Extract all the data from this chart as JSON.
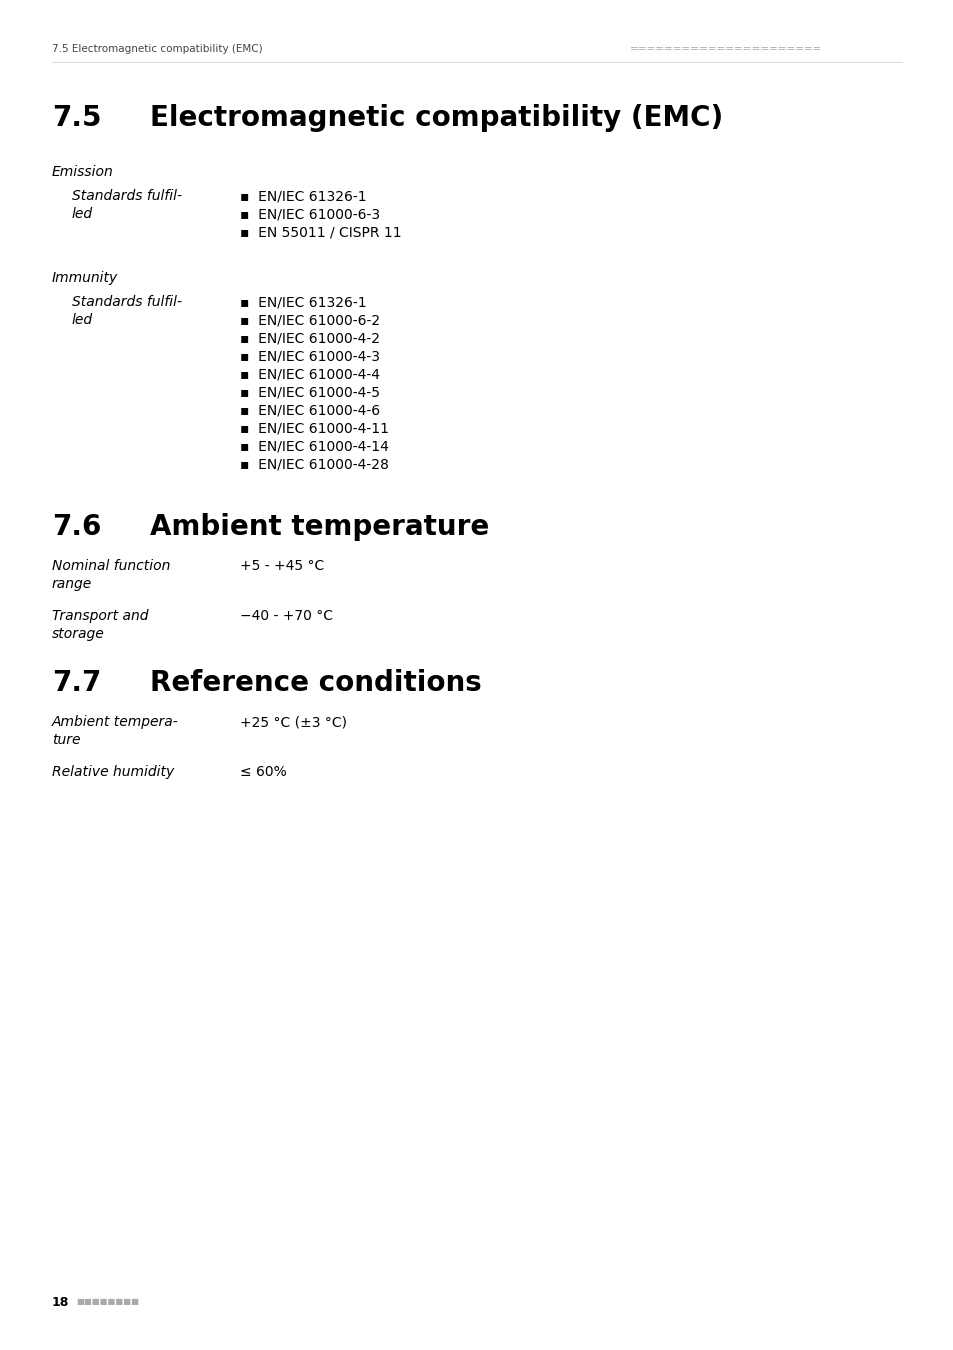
{
  "header_text": "7.5 Electromagnetic compatibility (EMC)",
  "header_right_dots": "======================",
  "section_75_title_num": "7.5",
  "section_75_title_text": "Electromagnetic compatibility (EMC)",
  "emission_label": "Emission",
  "emission_sub_line1": "Standards fulfil-",
  "emission_sub_line2": "led",
  "emission_standards": [
    "EN/IEC 61326-1",
    "EN/IEC 61000-6-3",
    "EN 55011 / CISPR 11"
  ],
  "immunity_label": "Immunity",
  "immunity_sub_line1": "Standards fulfil-",
  "immunity_sub_line2": "led",
  "immunity_standards": [
    "EN/IEC 61326-1",
    "EN/IEC 61000-6-2",
    "EN/IEC 61000-4-2",
    "EN/IEC 61000-4-3",
    "EN/IEC 61000-4-4",
    "EN/IEC 61000-4-5",
    "EN/IEC 61000-4-6",
    "EN/IEC 61000-4-11",
    "EN/IEC 61000-4-14",
    "EN/IEC 61000-4-28"
  ],
  "section_76_title_num": "7.6",
  "section_76_title_text": "Ambient temperature",
  "nominal_func_line1": "Nominal function",
  "nominal_func_line2": "range",
  "nominal_func_value": "+5 - +45 °C",
  "transport_line1": "Transport and",
  "transport_line2": "storage",
  "transport_value": "−40 - +70 °C",
  "section_77_title_num": "7.7",
  "section_77_title_text": "Reference conditions",
  "ambient_temp_line1": "Ambient tempera-",
  "ambient_temp_line2": "ture",
  "ambient_temp_value": "+25 °C (±3 °C)",
  "rel_humidity_label": "Relative humidity",
  "rel_humidity_value": "≤ 60%",
  "page_number": "18",
  "bg_color": "#ffffff",
  "text_color": "#000000",
  "gray_color": "#555555",
  "light_gray": "#aaaaaa",
  "bullet_char": "▪"
}
